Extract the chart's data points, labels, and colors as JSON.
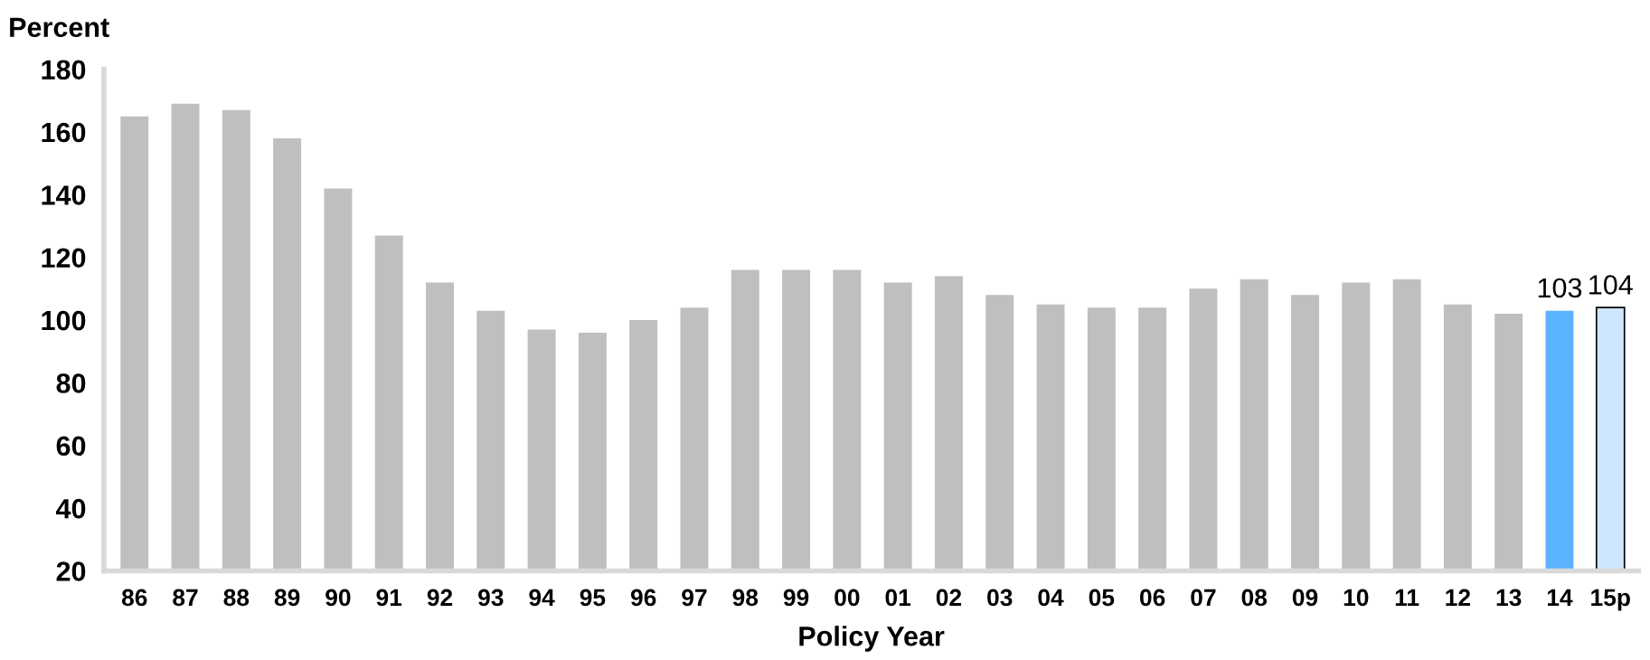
{
  "chart_data": {
    "type": "bar",
    "ylabel": "Percent",
    "xlabel": "Policy Year",
    "categories": [
      "86",
      "87",
      "88",
      "89",
      "90",
      "91",
      "92",
      "93",
      "94",
      "95",
      "96",
      "97",
      "98",
      "99",
      "00",
      "01",
      "02",
      "03",
      "04",
      "05",
      "06",
      "07",
      "08",
      "09",
      "10",
      "11",
      "12",
      "13",
      "14",
      "15p"
    ],
    "values": [
      165,
      169,
      167,
      158,
      142,
      127,
      112,
      103,
      97,
      96,
      100,
      104,
      116,
      116,
      116,
      112,
      114,
      108,
      105,
      104,
      104,
      110,
      113,
      108,
      112,
      113,
      105,
      102,
      103,
      104
    ],
    "colors": [
      "#bfbfbf",
      "#bfbfbf",
      "#bfbfbf",
      "#bfbfbf",
      "#bfbfbf",
      "#bfbfbf",
      "#bfbfbf",
      "#bfbfbf",
      "#bfbfbf",
      "#bfbfbf",
      "#bfbfbf",
      "#bfbfbf",
      "#bfbfbf",
      "#bfbfbf",
      "#bfbfbf",
      "#bfbfbf",
      "#bfbfbf",
      "#bfbfbf",
      "#bfbfbf",
      "#bfbfbf",
      "#bfbfbf",
      "#bfbfbf",
      "#bfbfbf",
      "#bfbfbf",
      "#bfbfbf",
      "#bfbfbf",
      "#bfbfbf",
      "#bfbfbf",
      "#5cb3ff",
      "#cce6ff"
    ],
    "value_labels": [
      null,
      null,
      null,
      null,
      null,
      null,
      null,
      null,
      null,
      null,
      null,
      null,
      null,
      null,
      null,
      null,
      null,
      null,
      null,
      null,
      null,
      null,
      null,
      null,
      null,
      null,
      null,
      null,
      "103",
      "104"
    ],
    "ylim": [
      20,
      180
    ],
    "yticks": [
      20,
      40,
      60,
      80,
      100,
      120,
      140,
      160,
      180
    ],
    "grid": false,
    "legend": false
  }
}
